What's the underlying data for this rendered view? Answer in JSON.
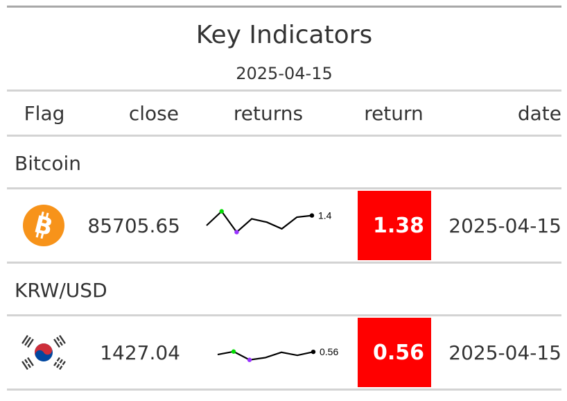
{
  "title": "Key Indicators",
  "subtitle": "2025-04-15",
  "columns": {
    "flag": "Flag",
    "close": "close",
    "returns": "returns",
    "return": "return",
    "date": "date"
  },
  "colors": {
    "highlight": "#ff0000",
    "spark_high": "#00dd00",
    "spark_low": "#9933ff"
  },
  "groups": [
    {
      "name": "Bitcoin",
      "icon": "bitcoin-icon",
      "close": "85705.65",
      "returns_values": [
        0.2,
        1.9,
        -0.6,
        1.0,
        0.6,
        -0.2,
        1.2,
        1.4
      ],
      "returns_label": "1.4",
      "return": "1.38",
      "date": "2025-04-15"
    },
    {
      "name": "KRW/USD",
      "icon": "south-korea-flag-icon",
      "close": "1427.04",
      "returns_values": [
        0.2,
        0.6,
        -0.5,
        -0.2,
        0.5,
        0.1,
        0.56
      ],
      "returns_label": "0.56",
      "return": "0.56",
      "date": "2025-04-15"
    }
  ]
}
